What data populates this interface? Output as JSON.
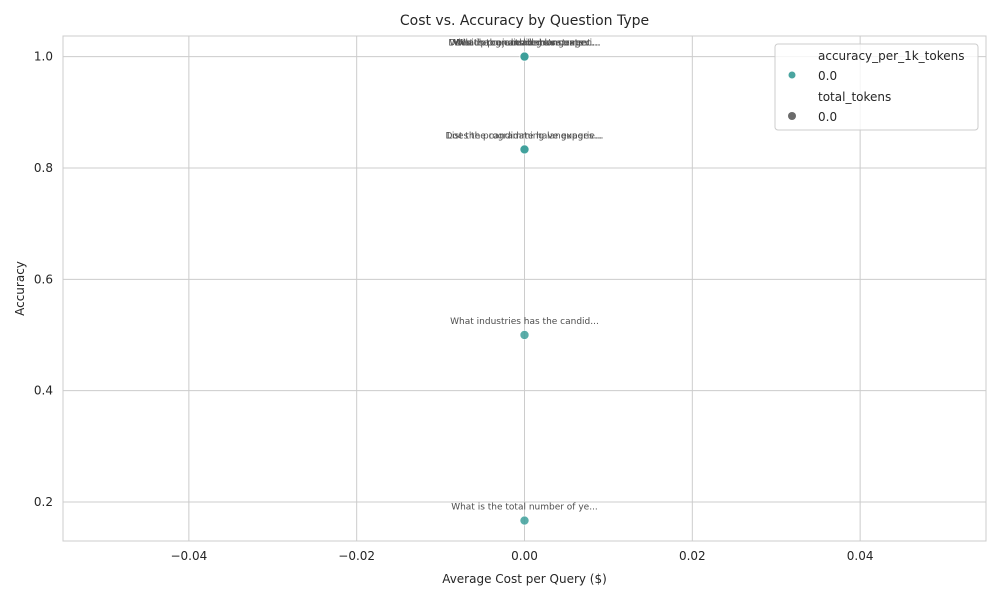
{
  "chart_data": {
    "type": "scatter",
    "title": "Cost vs. Accuracy by Question Type",
    "xlabel": "Average Cost per Query ($)",
    "ylabel": "Accuracy",
    "xlim": [
      -0.055,
      0.055
    ],
    "ylim": [
      0.13,
      1.037
    ],
    "xticks": [
      -0.04,
      -0.02,
      0.0,
      0.02,
      0.04
    ],
    "xtick_labels": [
      "−0.04",
      "−0.02",
      "0.00",
      "0.02",
      "0.04"
    ],
    "yticks": [
      0.2,
      0.4,
      0.6,
      0.8,
      1.0
    ],
    "ytick_labels": [
      "0.2",
      "0.4",
      "0.6",
      "0.8",
      "1.0"
    ],
    "grid": true,
    "points": [
      {
        "x": 0.0,
        "y": 1.0,
        "label": "Which projects demonstrate..."
      },
      {
        "x": 0.0,
        "y": 1.0,
        "label": "What programming language..."
      },
      {
        "x": 0.0,
        "y": 1.0,
        "label": "Does the candidate have experi..."
      },
      {
        "x": 0.0,
        "y": 1.0,
        "label": "What is the candidate's current..."
      },
      {
        "x": 0.0,
        "y": 0.8333,
        "label": "List the programming languages..."
      },
      {
        "x": 0.0,
        "y": 0.8333,
        "label": "Does the candidate have experie..."
      },
      {
        "x": 0.0,
        "y": 0.5,
        "label": "What industries has the candid..."
      },
      {
        "x": 0.0,
        "y": 0.1667,
        "label": "What is the total number of ye..."
      }
    ],
    "legend": {
      "position": "top-right",
      "groups": [
        {
          "title": "accuracy_per_1k_tokens",
          "entries": [
            {
              "label": "0.0",
              "marker": "circle",
              "color": "#4aa5a0"
            }
          ]
        },
        {
          "title": "total_tokens",
          "entries": [
            {
              "label": "0.0",
              "marker": "circle",
              "color": "#6b6b6b"
            }
          ]
        }
      ]
    },
    "colors": {
      "point": "#3d9f9a",
      "grid": "#cccccc",
      "axis": "#cccccc"
    }
  }
}
